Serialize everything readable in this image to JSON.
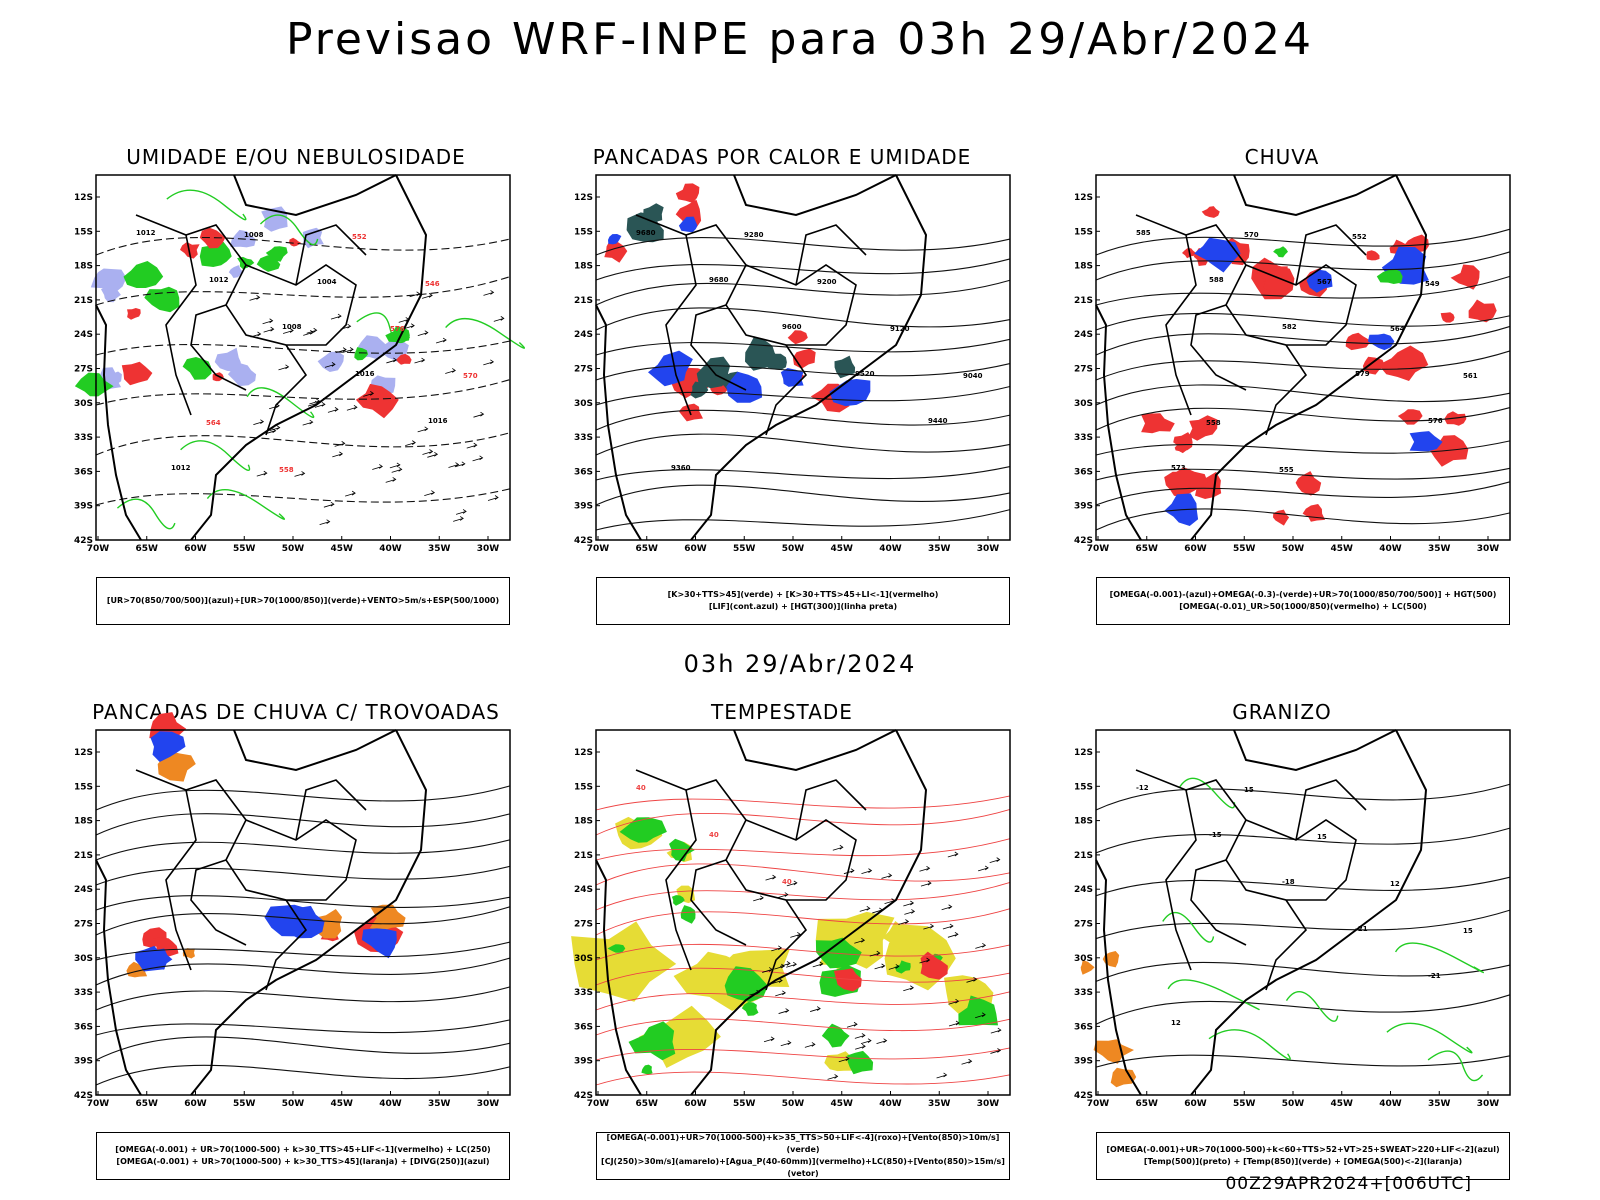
{
  "header": {
    "title": "Previsao WRF-INPE  para 03h 29/Abr/2024"
  },
  "middle": {
    "title": "03h 29/Abr/2024"
  },
  "footer": {
    "stamp": "00Z29APR2024+[006UTC]"
  },
  "axes": {
    "lat_labels": [
      "12S",
      "15S",
      "18S",
      "21S",
      "24S",
      "27S",
      "30S",
      "33S",
      "36S",
      "39S",
      "42S"
    ],
    "lon_labels": [
      "70W",
      "65W",
      "60W",
      "55W",
      "50W",
      "45W",
      "40W",
      "35W",
      "30W"
    ]
  },
  "colors": {
    "green": "#22cc22",
    "red": "#ee3333",
    "blue": "#2244ee",
    "lavender": "#aab0f0",
    "yellow": "#e6dc35",
    "dark_teal": "#2a5555",
    "orange": "#ee8822"
  },
  "panels": [
    {
      "title": "UMIDADE E/OU NEBULOSIDADE",
      "legend": [
        "[UR>70(850/700/500)](azul)+[UR>70(1000/850)](verde)+VENTO>5m/s+ESP(500/1000)"
      ],
      "contour_labels": [
        "1012",
        "1012",
        "1008",
        "1016",
        "1016",
        "1012",
        "1008",
        "1004",
        "576",
        "570",
        "564",
        "558",
        "552",
        "546"
      ]
    },
    {
      "title": "PANCADAS POR CALOR E UMIDADE",
      "legend": [
        "[K>30+TTS>45](verde) + [K>30+TTS>45+LI<-1](vermelho)",
        "[LIF](cont.azul) + [HGT(300)](linha preta)"
      ],
      "contour_labels": [
        "9680",
        "9680",
        "9600",
        "9520",
        "9440",
        "9360",
        "9280",
        "9200",
        "9120",
        "9040"
      ]
    },
    {
      "title": "CHUVA",
      "legend": [
        "[OMEGA(-0.001)-(azul)+OMEGA(-0.3)-(verde)+UR>70(1000/850/700/500)] + HGT(500)",
        "[OMEGA(-0.01)_UR>50(1000/850)(vermelho) + LC(500)"
      ],
      "contour_labels": [
        "585",
        "588",
        "582",
        "579",
        "576",
        "573",
        "570",
        "567",
        "564",
        "561",
        "558",
        "555",
        "552",
        "549"
      ]
    },
    {
      "title": "PANCADAS DE CHUVA C/ TROVOADAS",
      "legend": [
        "[OMEGA(-0.001) + UR>70(1000-500) + k>30_TTS>45+LIF<-1](vermelho) + LC(250)",
        "[OMEGA(-0.001) + UR>70(1000-500) + k>30_TTS>45](laranja) + [DIVG(250)](azul)"
      ],
      "contour_labels": []
    },
    {
      "title": "TEMPESTADE",
      "legend": [
        "[OMEGA(-0.001)+UR>70(1000-500)+k>35_TTS>50+LIF<-4](roxo)+[Vento(850)>10m/s](verde)",
        "[CJ(250)>30m/s](amarelo)+[Agua_P(40-60mm)](vermelho)+LC(850)+[Vento(850)>15m/s](vetor)"
      ],
      "contour_labels": [
        "40",
        "40",
        "40"
      ]
    },
    {
      "title": "GRANIZO",
      "legend": [
        "[OMEGA(-0.001)+UR>70(1000-500)+k<60+TTS>52+VT>25+SWEAT>220+LIF<-2](azul)",
        "[Temp(500)](preto) + [Temp(850)](verde) + [OMEGA(500)<-2](laranja)"
      ],
      "contour_labels": [
        "-12",
        "-15",
        "-18",
        "-21",
        "-21",
        "12",
        "15",
        "15",
        "12",
        "15"
      ]
    }
  ]
}
